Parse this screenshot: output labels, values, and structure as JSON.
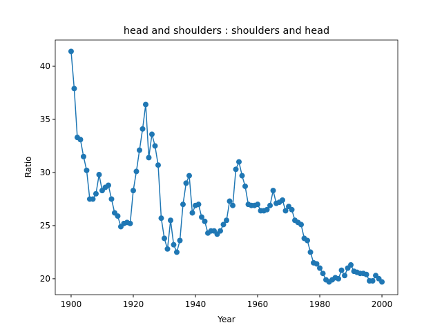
{
  "chart_data": {
    "type": "line",
    "title": "head and shoulders : shoulders and head",
    "xlabel": "Year",
    "ylabel": "Ratio",
    "x": [
      1900,
      1901,
      1902,
      1903,
      1904,
      1905,
      1906,
      1907,
      1908,
      1909,
      1910,
      1911,
      1912,
      1913,
      1914,
      1915,
      1916,
      1917,
      1918,
      1919,
      1920,
      1921,
      1922,
      1923,
      1924,
      1925,
      1926,
      1927,
      1928,
      1929,
      1930,
      1931,
      1932,
      1933,
      1934,
      1935,
      1936,
      1937,
      1938,
      1939,
      1940,
      1941,
      1942,
      1943,
      1944,
      1945,
      1946,
      1947,
      1948,
      1949,
      1950,
      1951,
      1952,
      1953,
      1954,
      1955,
      1956,
      1957,
      1958,
      1959,
      1960,
      1961,
      1962,
      1963,
      1964,
      1965,
      1966,
      1967,
      1968,
      1969,
      1970,
      1971,
      1972,
      1973,
      1974,
      1975,
      1976,
      1977,
      1978,
      1979,
      1980,
      1981,
      1982,
      1983,
      1984,
      1985,
      1986,
      1987,
      1988,
      1989,
      1990,
      1991,
      1992,
      1993,
      1994,
      1995,
      1996,
      1997,
      1998,
      1999,
      2000
    ],
    "series": [
      {
        "name": "Ratio",
        "color": "#1f77b4",
        "values": [
          41.4,
          37.9,
          33.3,
          33.1,
          31.5,
          30.2,
          27.5,
          27.5,
          28.0,
          29.8,
          28.3,
          28.6,
          28.8,
          27.5,
          26.2,
          25.9,
          24.9,
          25.2,
          25.3,
          25.2,
          28.3,
          30.1,
          32.1,
          34.1,
          36.4,
          31.4,
          33.6,
          32.5,
          30.7,
          25.7,
          23.8,
          22.8,
          25.5,
          23.2,
          22.5,
          23.6,
          27.0,
          29.0,
          29.7,
          26.2,
          26.9,
          27.0,
          25.8,
          25.4,
          24.3,
          24.5,
          24.5,
          24.2,
          24.5,
          25.1,
          25.5,
          27.3,
          26.9,
          30.3,
          31.0,
          29.7,
          28.7,
          27.0,
          26.9,
          26.9,
          27.0,
          26.4,
          26.4,
          26.5,
          26.9,
          28.3,
          27.1,
          27.2,
          27.4,
          26.4,
          26.8,
          26.5,
          25.5,
          25.3,
          25.1,
          23.8,
          23.6,
          22.5,
          21.5,
          21.4,
          21.0,
          20.5,
          19.9,
          19.7,
          19.9,
          20.1,
          20.0,
          20.8,
          20.3,
          21.0,
          21.3,
          20.7,
          20.6,
          20.5,
          20.5,
          20.4,
          19.8,
          19.8,
          20.3,
          20.0,
          19.7
        ]
      }
    ],
    "xlim": [
      1894.9,
      2005.1
    ],
    "xticks": [
      1900,
      1920,
      1940,
      1960,
      1980,
      2000
    ],
    "ylim": [
      18.5,
      42.47
    ],
    "yticks": [
      20,
      25,
      30,
      35,
      40
    ]
  }
}
